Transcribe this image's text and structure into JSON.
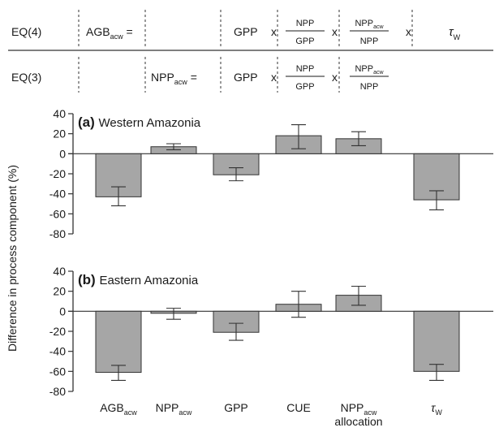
{
  "equations": {
    "rows": [
      {
        "id": "EQ(4)",
        "label": "EQ(4)",
        "lhs": {
          "base": "AGB",
          "sub": "acw",
          "suffix": " ="
        },
        "mid": null,
        "terms": [
          {
            "kind": "text",
            "text": "GPP"
          },
          {
            "kind": "op",
            "text": "x"
          },
          {
            "kind": "frac",
            "num": {
              "base": "NPP",
              "sub": ""
            },
            "den": {
              "base": "GPP",
              "sub": ""
            }
          },
          {
            "kind": "op",
            "text": "x"
          },
          {
            "kind": "frac",
            "num": {
              "base": "NPP",
              "sub": "acw"
            },
            "den": {
              "base": "NPP",
              "sub": ""
            }
          },
          {
            "kind": "op",
            "text": "x"
          },
          {
            "kind": "tau",
            "base": "τ",
            "sub": "W"
          }
        ]
      },
      {
        "id": "EQ(3)",
        "label": "EQ(3)",
        "lhs": null,
        "mid": {
          "base": "NPP",
          "sub": "acw",
          "suffix": " ="
        },
        "terms": [
          {
            "kind": "text",
            "text": "GPP"
          },
          {
            "kind": "op",
            "text": "x"
          },
          {
            "kind": "frac",
            "num": {
              "base": "NPP",
              "sub": ""
            },
            "den": {
              "base": "GPP",
              "sub": ""
            }
          },
          {
            "kind": "op",
            "text": "x"
          },
          {
            "kind": "frac",
            "num": {
              "base": "NPP",
              "sub": "acw"
            },
            "den": {
              "base": "NPP",
              "sub": ""
            }
          }
        ]
      }
    ]
  },
  "chart_data": {
    "type": "bar",
    "ylabel": "Difference in process component (%)",
    "ylim": [
      -80,
      40
    ],
    "yticks": [
      40,
      20,
      0,
      -20,
      -40,
      -60,
      -80
    ],
    "categories": [
      {
        "base": "AGB",
        "sub": "acw"
      },
      {
        "base": "NPP",
        "sub": "acw"
      },
      {
        "base": "GPP",
        "sub": ""
      },
      {
        "base": "CUE",
        "sub": ""
      },
      {
        "base": "NPP",
        "sub": "acw",
        "line2": "allocation"
      },
      {
        "base": "τ",
        "sub": "W"
      }
    ],
    "panels": [
      {
        "id": "a",
        "letter": "(a)",
        "title": "Western Amazonia",
        "values": [
          -43,
          7,
          -21,
          18,
          15,
          -46
        ],
        "err_low": [
          -52,
          4,
          -27,
          5,
          8,
          -56
        ],
        "err_high": [
          -33,
          10,
          -14,
          29,
          22,
          -37
        ]
      },
      {
        "id": "b",
        "letter": "(b)",
        "title": "Eastern Amazonia",
        "values": [
          -61,
          -2,
          -21,
          7,
          16,
          -60
        ],
        "err_low": [
          -69,
          -8,
          -29,
          -6,
          6,
          -69
        ],
        "err_high": [
          -54,
          3,
          -12,
          20,
          25,
          -53
        ]
      }
    ],
    "colors": {
      "bar_fill": "#a6a6a6",
      "bar_stroke": "#333333",
      "axis": "#333333",
      "text": "#1a1a1a"
    }
  }
}
